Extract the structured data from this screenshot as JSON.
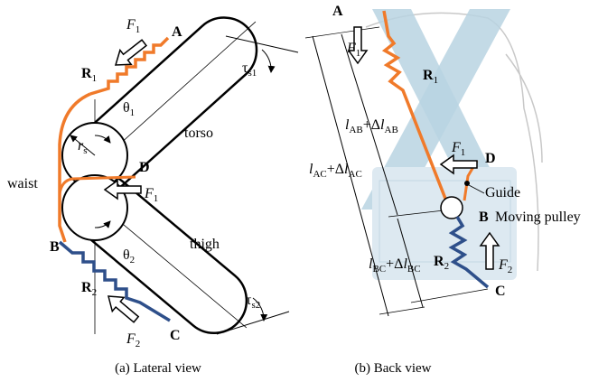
{
  "lateral_view": {
    "caption": "(a) Lateral view",
    "labels": [
      {
        "segments": [
          {
            "text": "F",
            "style": "italic"
          },
          {
            "text": "1",
            "style": "sub"
          }
        ]
      },
      {
        "segments": [
          {
            "text": "A",
            "style": "bold"
          }
        ]
      },
      {
        "segments": [
          {
            "text": "R",
            "style": "bold"
          },
          {
            "text": "1",
            "style": "sub"
          }
        ]
      },
      {
        "segments": [
          {
            "text": "θ",
            "style": "plain"
          },
          {
            "text": "1",
            "style": "sub"
          }
        ]
      },
      {
        "segments": [
          {
            "text": "τ",
            "style": "plain"
          },
          {
            "text": "s1",
            "style": "sub"
          }
        ]
      },
      {
        "segments": [
          {
            "text": "torso",
            "style": "plain"
          }
        ]
      },
      {
        "segments": [
          {
            "text": "r",
            "style": "italic"
          },
          {
            "text": "s",
            "style": "sub"
          }
        ]
      },
      {
        "segments": [
          {
            "text": "waist",
            "style": "plain"
          }
        ]
      },
      {
        "segments": [
          {
            "text": "D",
            "style": "bold"
          }
        ]
      },
      {
        "segments": [
          {
            "text": "F",
            "style": "italic"
          },
          {
            "text": "1",
            "style": "sub"
          }
        ]
      },
      {
        "segments": [
          {
            "text": "B",
            "style": "bold"
          }
        ]
      },
      {
        "segments": [
          {
            "text": "θ",
            "style": "plain"
          },
          {
            "text": "2",
            "style": "sub"
          }
        ]
      },
      {
        "segments": [
          {
            "text": "thigh",
            "style": "plain"
          }
        ]
      },
      {
        "segments": [
          {
            "text": "R",
            "style": "bold"
          },
          {
            "text": "2",
            "style": "sub"
          }
        ]
      },
      {
        "segments": [
          {
            "text": "τ",
            "style": "plain"
          },
          {
            "text": "s2",
            "style": "sub"
          }
        ]
      },
      {
        "segments": [
          {
            "text": "F",
            "style": "italic"
          },
          {
            "text": "2",
            "style": "sub"
          }
        ]
      },
      {
        "segments": [
          {
            "text": "C",
            "style": "bold"
          }
        ]
      }
    ]
  },
  "back_view": {
    "caption": "(b) Back view",
    "labels": [
      {
        "segments": [
          {
            "text": "A",
            "style": "bold"
          }
        ]
      },
      {
        "segments": [
          {
            "text": "F",
            "style": "italic"
          },
          {
            "text": "1",
            "style": "sub"
          }
        ]
      },
      {
        "segments": [
          {
            "text": "R",
            "style": "bold"
          },
          {
            "text": "1",
            "style": "sub"
          }
        ]
      },
      {
        "segments": [
          {
            "text": "l",
            "style": "italic"
          },
          {
            "text": "AB",
            "style": "sub"
          },
          {
            "text": "+Δ",
            "style": "plain"
          },
          {
            "text": "l",
            "style": "italic"
          },
          {
            "text": "AB",
            "style": "sub"
          }
        ]
      },
      {
        "segments": [
          {
            "text": "l",
            "style": "italic"
          },
          {
            "text": "AC",
            "style": "sub"
          },
          {
            "text": "+Δ",
            "style": "plain"
          },
          {
            "text": "l",
            "style": "italic"
          },
          {
            "text": "AC",
            "style": "sub"
          }
        ]
      },
      {
        "segments": [
          {
            "text": "F",
            "style": "italic"
          },
          {
            "text": "1",
            "style": "sub"
          }
        ]
      },
      {
        "segments": [
          {
            "text": "D",
            "style": "bold"
          }
        ]
      },
      {
        "segments": [
          {
            "text": "Guide",
            "style": "plain"
          }
        ]
      },
      {
        "segments": [
          {
            "text": "B",
            "style": "bold"
          }
        ]
      },
      {
        "segments": [
          {
            "text": "Moving pulley",
            "style": "plain"
          }
        ]
      },
      {
        "segments": [
          {
            "text": "R",
            "style": "bold"
          },
          {
            "text": "2",
            "style": "sub"
          }
        ]
      },
      {
        "segments": [
          {
            "text": "F",
            "style": "italic"
          },
          {
            "text": "2",
            "style": "sub"
          }
        ]
      },
      {
        "segments": [
          {
            "text": "l",
            "style": "italic"
          },
          {
            "text": "BC",
            "style": "sub"
          },
          {
            "text": "+Δ",
            "style": "plain"
          },
          {
            "text": "l",
            "style": "italic"
          },
          {
            "text": "BC",
            "style": "sub"
          }
        ]
      },
      {
        "segments": [
          {
            "text": "C",
            "style": "bold"
          }
        ]
      }
    ]
  }
}
